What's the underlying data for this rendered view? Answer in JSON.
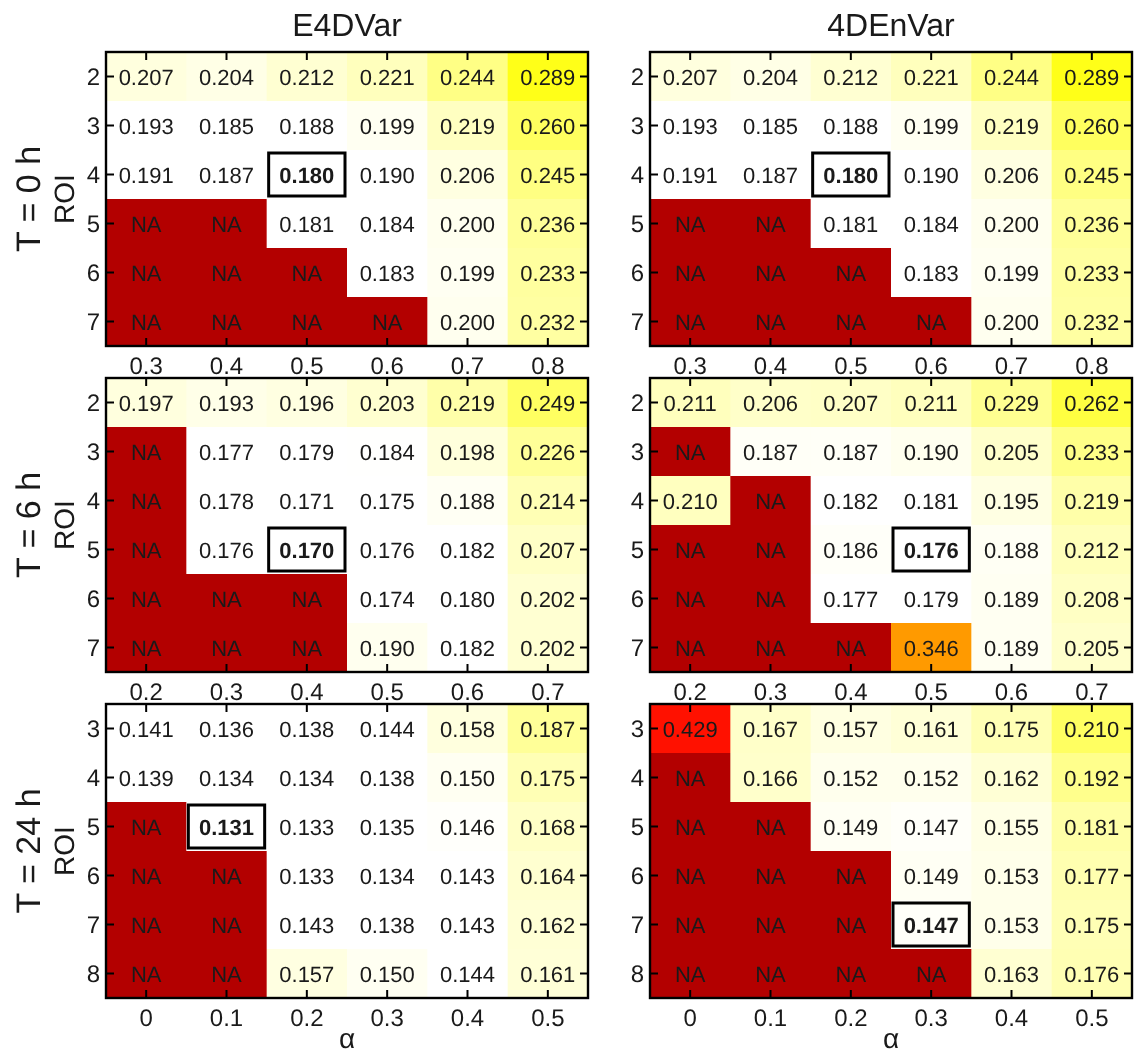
{
  "chart_data": [
    {
      "type": "heatmap",
      "title": "E4DVar",
      "ylabel": "ROI",
      "categories": [
        "0.3",
        "0.4",
        "0.5",
        "0.6",
        "0.7",
        "0.8"
      ],
      "y_categories": [
        "2",
        "3",
        "4",
        "5",
        "6",
        "7"
      ],
      "cells": [
        [
          0.207,
          0.204,
          0.212,
          0.221,
          0.244,
          0.289
        ],
        [
          0.193,
          0.185,
          0.188,
          0.199,
          0.219,
          0.26
        ],
        [
          0.191,
          0.187,
          0.18,
          0.19,
          0.206,
          0.245
        ],
        [
          null,
          null,
          0.181,
          0.184,
          0.2,
          0.236
        ],
        [
          null,
          null,
          null,
          0.183,
          0.199,
          0.233
        ],
        [
          null,
          null,
          null,
          null,
          0.2,
          0.232
        ]
      ],
      "cell_labels": [
        [
          "0.207",
          "0.204",
          "0.212",
          "0.221",
          "0.244",
          "0.289"
        ],
        [
          "0.193",
          "0.185",
          "0.188",
          "0.199",
          "0.219",
          "0.260"
        ],
        [
          "0.191",
          "0.187",
          "0.180",
          "0.190",
          "0.206",
          "0.245"
        ],
        [
          "NA",
          "NA",
          "0.181",
          "0.184",
          "0.200",
          "0.236"
        ],
        [
          "NA",
          "NA",
          "NA",
          "0.183",
          "0.199",
          "0.233"
        ],
        [
          "NA",
          "NA",
          "NA",
          "NA",
          "0.200",
          "0.232"
        ]
      ],
      "annotations": [
        "T = 0 h"
      ]
    },
    {
      "type": "heatmap",
      "title": "4DEnVar",
      "categories": [
        "0.3",
        "0.4",
        "0.5",
        "0.6",
        "0.7",
        "0.8"
      ],
      "y_categories": [
        "2",
        "3",
        "4",
        "5",
        "6",
        "7"
      ],
      "cells": [
        [
          0.207,
          0.204,
          0.212,
          0.221,
          0.244,
          0.289
        ],
        [
          0.193,
          0.185,
          0.188,
          0.199,
          0.219,
          0.26
        ],
        [
          0.191,
          0.187,
          0.18,
          0.19,
          0.206,
          0.245
        ],
        [
          null,
          null,
          0.181,
          0.184,
          0.2,
          0.236
        ],
        [
          null,
          null,
          null,
          0.183,
          0.199,
          0.233
        ],
        [
          null,
          null,
          null,
          null,
          0.2,
          0.232
        ]
      ],
      "cell_labels": [
        [
          "0.207",
          "0.204",
          "0.212",
          "0.221",
          "0.244",
          "0.289"
        ],
        [
          "0.193",
          "0.185",
          "0.188",
          "0.199",
          "0.219",
          "0.260"
        ],
        [
          "0.191",
          "0.187",
          "0.180",
          "0.190",
          "0.206",
          "0.245"
        ],
        [
          "NA",
          "NA",
          "0.181",
          "0.184",
          "0.200",
          "0.236"
        ],
        [
          "NA",
          "NA",
          "NA",
          "0.183",
          "0.199",
          "0.233"
        ],
        [
          "NA",
          "NA",
          "NA",
          "NA",
          "0.200",
          "0.232"
        ]
      ]
    },
    {
      "type": "heatmap",
      "ylabel": "ROI",
      "categories": [
        "0.2",
        "0.3",
        "0.4",
        "0.5",
        "0.6",
        "0.7"
      ],
      "y_categories": [
        "2",
        "3",
        "4",
        "5",
        "6",
        "7"
      ],
      "cells": [
        [
          0.197,
          0.193,
          0.196,
          0.203,
          0.219,
          0.249
        ],
        [
          null,
          0.177,
          0.179,
          0.184,
          0.198,
          0.226
        ],
        [
          null,
          0.178,
          0.171,
          0.175,
          0.188,
          0.214
        ],
        [
          null,
          0.176,
          0.17,
          0.176,
          0.182,
          0.207
        ],
        [
          null,
          null,
          null,
          0.174,
          0.18,
          0.202
        ],
        [
          null,
          null,
          null,
          0.19,
          0.182,
          0.202
        ]
      ],
      "cell_labels": [
        [
          "0.197",
          "0.193",
          "0.196",
          "0.203",
          "0.219",
          "0.249"
        ],
        [
          "NA",
          "0.177",
          "0.179",
          "0.184",
          "0.198",
          "0.226"
        ],
        [
          "NA",
          "0.178",
          "0.171",
          "0.175",
          "0.188",
          "0.214"
        ],
        [
          "NA",
          "0.176",
          "0.170",
          "0.176",
          "0.182",
          "0.207"
        ],
        [
          "NA",
          "NA",
          "NA",
          "0.174",
          "0.180",
          "0.202"
        ],
        [
          "NA",
          "NA",
          "NA",
          "0.190",
          "0.182",
          "0.202"
        ]
      ],
      "annotations": [
        "T = 6 h"
      ]
    },
    {
      "type": "heatmap",
      "categories": [
        "0.2",
        "0.3",
        "0.4",
        "0.5",
        "0.6",
        "0.7"
      ],
      "y_categories": [
        "2",
        "3",
        "4",
        "5",
        "6",
        "7"
      ],
      "cells": [
        [
          0.211,
          0.206,
          0.207,
          0.211,
          0.229,
          0.262
        ],
        [
          null,
          0.187,
          0.187,
          0.19,
          0.205,
          0.233
        ],
        [
          0.21,
          null,
          0.182,
          0.181,
          0.195,
          0.219
        ],
        [
          null,
          null,
          0.186,
          0.176,
          0.188,
          0.212
        ],
        [
          null,
          null,
          0.177,
          0.179,
          0.189,
          0.208
        ],
        [
          null,
          null,
          null,
          0.346,
          0.189,
          0.205
        ]
      ],
      "cell_labels": [
        [
          "0.211",
          "0.206",
          "0.207",
          "0.211",
          "0.229",
          "0.262"
        ],
        [
          "NA",
          "0.187",
          "0.187",
          "0.190",
          "0.205",
          "0.233"
        ],
        [
          "0.210",
          "NA",
          "0.182",
          "0.181",
          "0.195",
          "0.219"
        ],
        [
          "NA",
          "NA",
          "0.186",
          "0.176",
          "0.188",
          "0.212"
        ],
        [
          "NA",
          "NA",
          "0.177",
          "0.179",
          "0.189",
          "0.208"
        ],
        [
          "NA",
          "NA",
          "NA",
          "0.346",
          "0.189",
          "0.205"
        ]
      ]
    },
    {
      "type": "heatmap",
      "ylabel": "ROI",
      "xlabel": "α",
      "categories": [
        "0",
        "0.1",
        "0.2",
        "0.3",
        "0.4",
        "0.5"
      ],
      "y_categories": [
        "3",
        "4",
        "5",
        "6",
        "7",
        "8"
      ],
      "cells": [
        [
          0.141,
          0.136,
          0.138,
          0.144,
          0.158,
          0.187
        ],
        [
          0.139,
          0.134,
          0.134,
          0.138,
          0.15,
          0.175
        ],
        [
          null,
          0.131,
          0.133,
          0.135,
          0.146,
          0.168
        ],
        [
          null,
          null,
          0.133,
          0.134,
          0.143,
          0.164
        ],
        [
          null,
          null,
          0.143,
          0.138,
          0.143,
          0.162
        ],
        [
          null,
          null,
          0.157,
          0.15,
          0.144,
          0.161
        ]
      ],
      "cell_labels": [
        [
          "0.141",
          "0.136",
          "0.138",
          "0.144",
          "0.158",
          "0.187"
        ],
        [
          "0.139",
          "0.134",
          "0.134",
          "0.138",
          "0.150",
          "0.175"
        ],
        [
          "NA",
          "0.131",
          "0.133",
          "0.135",
          "0.146",
          "0.168"
        ],
        [
          "NA",
          "NA",
          "0.133",
          "0.134",
          "0.143",
          "0.164"
        ],
        [
          "NA",
          "NA",
          "0.143",
          "0.138",
          "0.143",
          "0.162"
        ],
        [
          "NA",
          "NA",
          "0.157",
          "0.150",
          "0.144",
          "0.161"
        ]
      ],
      "annotations": [
        "T = 24 h"
      ]
    },
    {
      "type": "heatmap",
      "xlabel": "α",
      "categories": [
        "0",
        "0.1",
        "0.2",
        "0.3",
        "0.4",
        "0.5"
      ],
      "y_categories": [
        "3",
        "4",
        "5",
        "6",
        "7",
        "8"
      ],
      "cells": [
        [
          0.429,
          0.167,
          0.157,
          0.161,
          0.175,
          0.21
        ],
        [
          null,
          0.166,
          0.152,
          0.152,
          0.162,
          0.192
        ],
        [
          null,
          null,
          0.149,
          0.147,
          0.155,
          0.181
        ],
        [
          null,
          null,
          null,
          0.149,
          0.153,
          0.177
        ],
        [
          null,
          null,
          null,
          0.147,
          0.153,
          0.175
        ],
        [
          null,
          null,
          null,
          null,
          0.163,
          0.176
        ]
      ],
      "cell_labels": [
        [
          "0.429",
          "0.167",
          "0.157",
          "0.161",
          "0.175",
          "0.210"
        ],
        [
          "NA",
          "0.166",
          "0.152",
          "0.152",
          "0.162",
          "0.192"
        ],
        [
          "NA",
          "NA",
          "0.149",
          "0.147",
          "0.155",
          "0.181"
        ],
        [
          "NA",
          "NA",
          "NA",
          "0.149",
          "0.153",
          "0.177"
        ],
        [
          "NA",
          "NA",
          "NA",
          "0.147",
          "0.153",
          "0.175"
        ],
        [
          "NA",
          "NA",
          "NA",
          "NA",
          "0.163",
          "0.176"
        ]
      ]
    }
  ]
}
